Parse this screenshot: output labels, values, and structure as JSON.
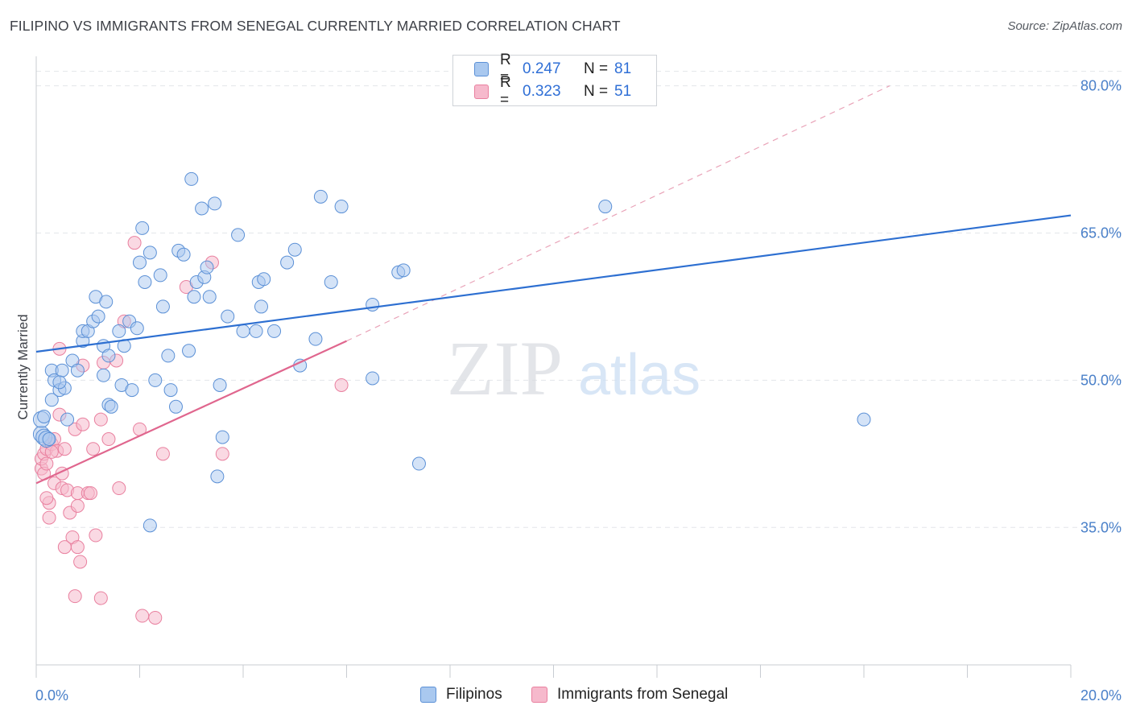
{
  "title": "FILIPINO VS IMMIGRANTS FROM SENEGAL CURRENTLY MARRIED CORRELATION CHART",
  "source": "Source: ZipAtlas.com",
  "watermark": {
    "zip": "ZIP",
    "atlas": "atlas"
  },
  "colors": {
    "blue_fill": "#a9c8ef",
    "blue_stroke": "#5b90d6",
    "blue_line": "#2d6fd1",
    "pink_fill": "#f6b9cc",
    "pink_stroke": "#e9809f",
    "pink_line": "#e0668e",
    "grid": "#e3e6ea",
    "tick_text": "#4a80c9"
  },
  "legend": {
    "rows": [
      {
        "r_label": "R =",
        "r_value": "0.247",
        "n_label": "N =",
        "n_value": "81"
      },
      {
        "r_label": "R =",
        "r_value": "0.323",
        "n_label": "N =",
        "n_value": "51"
      }
    ]
  },
  "bottom_legend": [
    "Filipinos",
    "Immigrants from Senegal"
  ],
  "chart_data": {
    "type": "scatter",
    "title": "FILIPINO VS IMMIGRANTS FROM SENEGAL CURRENTLY MARRIED CORRELATION CHART",
    "xlabel": "",
    "ylabel": "Currently Married",
    "xlim": [
      0,
      20
    ],
    "ylim": [
      21,
      83
    ],
    "x_tick_labels": [
      "0.0%",
      "20.0%"
    ],
    "y_ticks": [
      35,
      50,
      65,
      80
    ],
    "y_tick_labels": [
      "35.0%",
      "50.0%",
      "65.0%",
      "80.0%"
    ],
    "grid": true,
    "series": [
      {
        "name": "Filipinos",
        "r": 0.247,
        "n": 81,
        "trend": {
          "x": [
            0,
            20
          ],
          "y": [
            52.9,
            66.8
          ]
        },
        "points": [
          [
            0.1,
            44.5
          ],
          [
            0.15,
            44.2
          ],
          [
            0.2,
            44.0
          ],
          [
            0.1,
            46.0
          ],
          [
            0.3,
            48.0
          ],
          [
            0.3,
            51.0
          ],
          [
            0.35,
            50.0
          ],
          [
            0.5,
            51.0
          ],
          [
            0.45,
            49.0
          ],
          [
            0.55,
            49.2
          ],
          [
            0.6,
            46.0
          ],
          [
            0.7,
            52.0
          ],
          [
            0.8,
            51.0
          ],
          [
            0.9,
            54.0
          ],
          [
            0.9,
            55.0
          ],
          [
            1.0,
            55.0
          ],
          [
            1.1,
            56.0
          ],
          [
            1.15,
            58.5
          ],
          [
            1.2,
            56.5
          ],
          [
            1.3,
            53.5
          ],
          [
            1.35,
            58.0
          ],
          [
            1.4,
            52.5
          ],
          [
            1.4,
            47.5
          ],
          [
            1.45,
            47.3
          ],
          [
            1.6,
            55.0
          ],
          [
            1.65,
            49.5
          ],
          [
            1.7,
            53.5
          ],
          [
            1.8,
            56.0
          ],
          [
            1.85,
            49.0
          ],
          [
            1.95,
            55.3
          ],
          [
            2.0,
            62.0
          ],
          [
            2.05,
            65.5
          ],
          [
            2.1,
            60.0
          ],
          [
            2.2,
            63.0
          ],
          [
            2.3,
            50.0
          ],
          [
            2.4,
            60.7
          ],
          [
            2.45,
            57.5
          ],
          [
            2.55,
            52.5
          ],
          [
            2.6,
            49.0
          ],
          [
            2.7,
            47.3
          ],
          [
            2.75,
            63.2
          ],
          [
            2.85,
            62.8
          ],
          [
            2.95,
            53.0
          ],
          [
            3.0,
            70.5
          ],
          [
            3.05,
            58.5
          ],
          [
            3.1,
            60.0
          ],
          [
            3.2,
            67.5
          ],
          [
            3.25,
            60.5
          ],
          [
            3.3,
            61.5
          ],
          [
            3.35,
            58.5
          ],
          [
            3.45,
            68.0
          ],
          [
            3.55,
            49.5
          ],
          [
            3.6,
            44.2
          ],
          [
            3.7,
            56.5
          ],
          [
            3.5,
            40.2
          ],
          [
            3.9,
            64.8
          ],
          [
            4.0,
            55.0
          ],
          [
            4.25,
            55.0
          ],
          [
            4.3,
            60.0
          ],
          [
            4.35,
            57.5
          ],
          [
            4.4,
            60.3
          ],
          [
            4.6,
            55.0
          ],
          [
            4.85,
            62.0
          ],
          [
            5.0,
            63.3
          ],
          [
            5.1,
            51.5
          ],
          [
            5.4,
            54.2
          ],
          [
            5.5,
            68.7
          ],
          [
            5.7,
            60.0
          ],
          [
            5.9,
            67.7
          ],
          [
            6.5,
            50.2
          ],
          [
            6.5,
            57.7
          ],
          [
            7.0,
            61.0
          ],
          [
            7.1,
            61.2
          ],
          [
            7.4,
            41.5
          ],
          [
            11.0,
            67.7
          ],
          [
            16.0,
            46.0
          ],
          [
            2.2,
            35.2
          ],
          [
            0.45,
            49.8
          ],
          [
            0.25,
            44.0
          ],
          [
            1.3,
            50.5
          ],
          [
            0.15,
            46.3
          ]
        ]
      },
      {
        "name": "Immigrants from Senegal",
        "r": 0.323,
        "n": 51,
        "trend": {
          "x": [
            0,
            6
          ],
          "y": [
            39.5,
            54.0
          ]
        },
        "trend_extension": {
          "x": [
            6,
            16.5
          ],
          "y": [
            54.0,
            80.0
          ]
        },
        "points": [
          [
            0.1,
            41.0
          ],
          [
            0.1,
            42.0
          ],
          [
            0.15,
            40.5
          ],
          [
            0.15,
            42.5
          ],
          [
            0.2,
            41.5
          ],
          [
            0.2,
            43.0
          ],
          [
            0.25,
            37.5
          ],
          [
            0.25,
            36.0
          ],
          [
            0.3,
            43.5
          ],
          [
            0.35,
            44.0
          ],
          [
            0.35,
            39.5
          ],
          [
            0.4,
            42.8
          ],
          [
            0.45,
            53.2
          ],
          [
            0.45,
            46.5
          ],
          [
            0.5,
            39.0
          ],
          [
            0.55,
            43.0
          ],
          [
            0.55,
            33.0
          ],
          [
            0.6,
            38.8
          ],
          [
            0.65,
            36.5
          ],
          [
            0.7,
            34.0
          ],
          [
            0.75,
            45.0
          ],
          [
            0.75,
            28.0
          ],
          [
            0.8,
            37.2
          ],
          [
            0.8,
            33.0
          ],
          [
            0.8,
            38.5
          ],
          [
            0.85,
            31.5
          ],
          [
            0.9,
            45.5
          ],
          [
            0.9,
            51.5
          ],
          [
            1.0,
            38.5
          ],
          [
            1.05,
            38.5
          ],
          [
            1.1,
            43.0
          ],
          [
            1.15,
            34.2
          ],
          [
            1.25,
            27.8
          ],
          [
            1.25,
            46.0
          ],
          [
            1.3,
            51.8
          ],
          [
            1.4,
            44.0
          ],
          [
            1.55,
            52.0
          ],
          [
            1.6,
            39.0
          ],
          [
            1.7,
            56.0
          ],
          [
            1.9,
            64.0
          ],
          [
            2.0,
            45.0
          ],
          [
            2.05,
            26.0
          ],
          [
            2.3,
            25.8
          ],
          [
            2.45,
            42.5
          ],
          [
            2.9,
            59.5
          ],
          [
            3.4,
            62.0
          ],
          [
            3.6,
            42.5
          ],
          [
            5.9,
            49.5
          ],
          [
            0.5,
            40.5
          ],
          [
            0.3,
            42.7
          ],
          [
            0.2,
            38.0
          ]
        ]
      }
    ]
  }
}
